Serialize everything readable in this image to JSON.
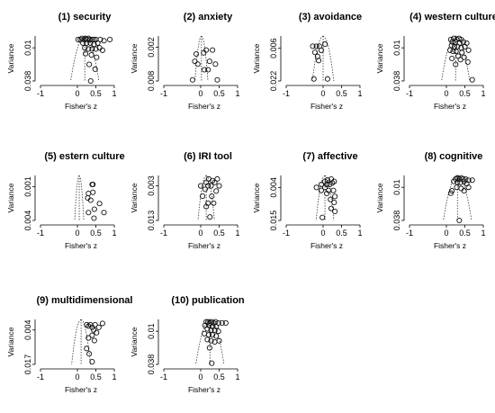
{
  "axis_labels": {
    "x": "Fisher's z",
    "y": "Variance"
  },
  "chart_data": [
    {
      "type": "scatter",
      "title": "(1) security",
      "xlabel": "Fisher's z",
      "ylabel": "Variance",
      "xlim": [
        -1,
        1
      ],
      "ylim": [
        0.038,
        0
      ],
      "x_ticks": [
        -1,
        0,
        0.5,
        1
      ],
      "x_tick_labels": [
        "-1",
        "0",
        "0.5",
        "1"
      ],
      "y_ticks": [
        0.01,
        0.038
      ],
      "y_tick_labels": [
        "0.01",
        "0.038"
      ],
      "funnel_center": 0.2,
      "points": [
        {
          "x": 0.02,
          "y": 0.003
        },
        {
          "x": 0.08,
          "y": 0.003
        },
        {
          "x": 0.12,
          "y": 0.002
        },
        {
          "x": 0.18,
          "y": 0.003
        },
        {
          "x": 0.22,
          "y": 0.002
        },
        {
          "x": 0.26,
          "y": 0.003
        },
        {
          "x": 0.3,
          "y": 0.002
        },
        {
          "x": 0.34,
          "y": 0.003
        },
        {
          "x": 0.4,
          "y": 0.003
        },
        {
          "x": 0.45,
          "y": 0.003
        },
        {
          "x": 0.5,
          "y": 0.003
        },
        {
          "x": 0.62,
          "y": 0.003
        },
        {
          "x": 0.72,
          "y": 0.004
        },
        {
          "x": 0.88,
          "y": 0.003
        },
        {
          "x": 0.15,
          "y": 0.006
        },
        {
          "x": 0.25,
          "y": 0.006
        },
        {
          "x": 0.35,
          "y": 0.006
        },
        {
          "x": 0.45,
          "y": 0.007
        },
        {
          "x": 0.55,
          "y": 0.006
        },
        {
          "x": 0.2,
          "y": 0.01
        },
        {
          "x": 0.3,
          "y": 0.011
        },
        {
          "x": 0.4,
          "y": 0.011
        },
        {
          "x": 0.5,
          "y": 0.011
        },
        {
          "x": 0.6,
          "y": 0.01
        },
        {
          "x": 0.68,
          "y": 0.012
        },
        {
          "x": 0.22,
          "y": 0.015
        },
        {
          "x": 0.38,
          "y": 0.016
        },
        {
          "x": 0.52,
          "y": 0.018
        },
        {
          "x": 0.32,
          "y": 0.024
        },
        {
          "x": 0.48,
          "y": 0.028
        },
        {
          "x": 0.36,
          "y": 0.038
        }
      ]
    },
    {
      "type": "scatter",
      "title": "(2) anxiety",
      "xlabel": "Fisher's z",
      "ylabel": "Variance",
      "xlim": [
        -1,
        1
      ],
      "ylim": [
        0.008,
        0
      ],
      "x_ticks": [
        -1,
        0,
        0.5,
        1
      ],
      "x_tick_labels": [
        "-1",
        "0",
        "0.5",
        "1"
      ],
      "y_ticks": [
        0.002,
        0.008
      ],
      "y_tick_labels": [
        "0.002",
        "0.008"
      ],
      "funnel_center": 0.02,
      "points": [
        {
          "x": 0.15,
          "y": 0.0025
        },
        {
          "x": 0.32,
          "y": 0.0025
        },
        {
          "x": -0.12,
          "y": 0.0032
        },
        {
          "x": 0.08,
          "y": 0.003
        },
        {
          "x": -0.16,
          "y": 0.0045
        },
        {
          "x": 0.24,
          "y": 0.0045
        },
        {
          "x": -0.08,
          "y": 0.005
        },
        {
          "x": 0.4,
          "y": 0.005
        },
        {
          "x": 0.2,
          "y": 0.006
        },
        {
          "x": 0.1,
          "y": 0.006
        },
        {
          "x": -0.22,
          "y": 0.0078
        },
        {
          "x": 0.45,
          "y": 0.0078
        }
      ]
    },
    {
      "type": "scatter",
      "title": "(3) avoidance",
      "xlabel": "Fisher's z",
      "ylabel": "Variance",
      "xlim": [
        -1,
        1
      ],
      "ylim": [
        0.022,
        0
      ],
      "x_ticks": [
        -1,
        0,
        0.5,
        1
      ],
      "x_tick_labels": [
        "-1",
        "0",
        "0.5",
        "1"
      ],
      "y_ticks": [
        0.006,
        0.022
      ],
      "y_tick_labels": [
        "0.006",
        "0.022"
      ],
      "funnel_center": 0.0,
      "points": [
        {
          "x": -0.28,
          "y": 0.005
        },
        {
          "x": -0.18,
          "y": 0.005
        },
        {
          "x": -0.1,
          "y": 0.005
        },
        {
          "x": 0.05,
          "y": 0.004
        },
        {
          "x": -0.22,
          "y": 0.008
        },
        {
          "x": -0.05,
          "y": 0.007
        },
        {
          "x": -0.15,
          "y": 0.01
        },
        {
          "x": -0.12,
          "y": 0.012
        },
        {
          "x": -0.25,
          "y": 0.021
        },
        {
          "x": 0.12,
          "y": 0.021
        }
      ]
    },
    {
      "type": "scatter",
      "title": "(4) western culture",
      "xlabel": "Fisher's z",
      "ylabel": "Variance",
      "xlim": [
        -1,
        1
      ],
      "ylim": [
        0.038,
        0
      ],
      "x_ticks": [
        -1,
        0,
        0.5,
        1
      ],
      "x_tick_labels": [
        "-1",
        "0",
        "0.5",
        "1"
      ],
      "y_ticks": [
        0.01,
        0.038
      ],
      "y_tick_labels": [
        "0.01",
        "0.038"
      ],
      "funnel_center": 0.25,
      "points": [
        {
          "x": 0.12,
          "y": 0.003
        },
        {
          "x": 0.2,
          "y": 0.002
        },
        {
          "x": 0.28,
          "y": 0.003
        },
        {
          "x": 0.34,
          "y": 0.002
        },
        {
          "x": 0.4,
          "y": 0.003
        },
        {
          "x": 0.16,
          "y": 0.005
        },
        {
          "x": 0.24,
          "y": 0.005
        },
        {
          "x": 0.36,
          "y": 0.006
        },
        {
          "x": 0.46,
          "y": 0.005
        },
        {
          "x": 0.55,
          "y": 0.006
        },
        {
          "x": 0.14,
          "y": 0.008
        },
        {
          "x": 0.22,
          "y": 0.009
        },
        {
          "x": 0.3,
          "y": 0.009
        },
        {
          "x": 0.4,
          "y": 0.01
        },
        {
          "x": 0.5,
          "y": 0.009
        },
        {
          "x": 0.1,
          "y": 0.012
        },
        {
          "x": 0.18,
          "y": 0.013
        },
        {
          "x": 0.26,
          "y": 0.013
        },
        {
          "x": 0.42,
          "y": 0.014
        },
        {
          "x": 0.6,
          "y": 0.012
        },
        {
          "x": 0.32,
          "y": 0.017
        },
        {
          "x": 0.48,
          "y": 0.018
        },
        {
          "x": 0.15,
          "y": 0.019
        },
        {
          "x": 0.38,
          "y": 0.02
        },
        {
          "x": 0.25,
          "y": 0.024
        },
        {
          "x": 0.58,
          "y": 0.022
        },
        {
          "x": 0.7,
          "y": 0.037
        }
      ]
    },
    {
      "type": "scatter",
      "title": "(5) estern culture",
      "xlabel": "Fisher's z",
      "ylabel": "Variance",
      "xlim": [
        -1,
        1
      ],
      "ylim": [
        0.004,
        0
      ],
      "x_ticks": [
        -1,
        0,
        0.5,
        1
      ],
      "x_tick_labels": [
        "-1",
        "0",
        "0.5",
        "1"
      ],
      "y_ticks": [
        0.001,
        0.004
      ],
      "y_tick_labels": [
        "0.001",
        "0.004"
      ],
      "funnel_center": 0.05,
      "points": [
        {
          "x": 0.4,
          "y": 0.0008
        },
        {
          "x": 0.42,
          "y": 0.0008
        },
        {
          "x": 0.3,
          "y": 0.0016
        },
        {
          "x": 0.42,
          "y": 0.0015
        },
        {
          "x": 0.28,
          "y": 0.002
        },
        {
          "x": 0.36,
          "y": 0.0022
        },
        {
          "x": 0.6,
          "y": 0.0025
        },
        {
          "x": 0.46,
          "y": 0.003
        },
        {
          "x": 0.3,
          "y": 0.0033
        },
        {
          "x": 0.72,
          "y": 0.0033
        },
        {
          "x": 0.45,
          "y": 0.0038
        }
      ]
    },
    {
      "type": "scatter",
      "title": "(6) IRI tool",
      "xlabel": "Fisher's z",
      "ylabel": "Variance",
      "xlim": [
        -1,
        1
      ],
      "ylim": [
        0.013,
        0
      ],
      "x_ticks": [
        -1,
        0,
        0.5,
        1
      ],
      "x_tick_labels": [
        "-1",
        "0",
        "0.5",
        "1"
      ],
      "y_ticks": [
        0.003,
        0.013
      ],
      "y_tick_labels": [
        "0.003",
        "0.013"
      ],
      "funnel_center": 0.15,
      "points": [
        {
          "x": 0.22,
          "y": 0.001
        },
        {
          "x": 0.32,
          "y": 0.0015
        },
        {
          "x": 0.45,
          "y": 0.001
        },
        {
          "x": 0.15,
          "y": 0.002
        },
        {
          "x": 0.38,
          "y": 0.002
        },
        {
          "x": 0.2,
          "y": 0.003
        },
        {
          "x": 0.28,
          "y": 0.003
        },
        {
          "x": 0.5,
          "y": 0.003
        },
        {
          "x": 0.0,
          "y": 0.003
        },
        {
          "x": 0.12,
          "y": 0.004
        },
        {
          "x": 0.42,
          "y": 0.0045
        },
        {
          "x": 0.3,
          "y": 0.006
        },
        {
          "x": 0.05,
          "y": 0.006
        },
        {
          "x": 0.2,
          "y": 0.008
        },
        {
          "x": 0.35,
          "y": 0.008
        },
        {
          "x": 0.15,
          "y": 0.009
        },
        {
          "x": 0.25,
          "y": 0.012
        }
      ]
    },
    {
      "type": "scatter",
      "title": "(7) affective",
      "xlabel": "Fisher's z",
      "ylabel": "Variance",
      "xlim": [
        -1,
        1
      ],
      "ylim": [
        0.015,
        0
      ],
      "x_ticks": [
        -1,
        0,
        0.5,
        1
      ],
      "x_tick_labels": [
        "-1",
        "0",
        "0.5",
        "1"
      ],
      "y_ticks": [
        0.004,
        0.015
      ],
      "y_tick_labels": [
        "0.004",
        "0.015"
      ],
      "funnel_center": 0.05,
      "points": [
        {
          "x": 0.05,
          "y": 0.002
        },
        {
          "x": 0.12,
          "y": 0.0015
        },
        {
          "x": 0.22,
          "y": 0.0012
        },
        {
          "x": 0.3,
          "y": 0.002
        },
        {
          "x": -0.05,
          "y": 0.003
        },
        {
          "x": 0.1,
          "y": 0.003
        },
        {
          "x": 0.18,
          "y": 0.003
        },
        {
          "x": 0.25,
          "y": 0.0025
        },
        {
          "x": -0.18,
          "y": 0.004
        },
        {
          "x": -0.05,
          "y": 0.005
        },
        {
          "x": 0.05,
          "y": 0.004
        },
        {
          "x": 0.15,
          "y": 0.005
        },
        {
          "x": 0.28,
          "y": 0.005
        },
        {
          "x": 0.1,
          "y": 0.006
        },
        {
          "x": 0.32,
          "y": 0.007
        },
        {
          "x": 0.2,
          "y": 0.008
        },
        {
          "x": 0.3,
          "y": 0.009
        },
        {
          "x": 0.22,
          "y": 0.011
        },
        {
          "x": 0.32,
          "y": 0.012
        },
        {
          "x": -0.02,
          "y": 0.014
        }
      ]
    },
    {
      "type": "scatter",
      "title": "(8) cognitive",
      "xlabel": "Fisher's z",
      "ylabel": "Variance",
      "xlim": [
        -1,
        1
      ],
      "ylim": [
        0.038,
        0
      ],
      "x_ticks": [
        -1,
        0,
        0.5,
        1
      ],
      "x_tick_labels": [
        "-1",
        "0",
        "0.5",
        "1"
      ],
      "y_ticks": [
        0.01,
        0.038
      ],
      "y_tick_labels": [
        "0.01",
        "0.038"
      ],
      "funnel_center": 0.3,
      "points": [
        {
          "x": 0.25,
          "y": 0.003
        },
        {
          "x": 0.3,
          "y": 0.002
        },
        {
          "x": 0.35,
          "y": 0.003
        },
        {
          "x": 0.4,
          "y": 0.002
        },
        {
          "x": 0.45,
          "y": 0.003
        },
        {
          "x": 0.52,
          "y": 0.003
        },
        {
          "x": 0.6,
          "y": 0.004
        },
        {
          "x": 0.7,
          "y": 0.004
        },
        {
          "x": 0.2,
          "y": 0.005
        },
        {
          "x": 0.3,
          "y": 0.006
        },
        {
          "x": 0.38,
          "y": 0.006
        },
        {
          "x": 0.48,
          "y": 0.005
        },
        {
          "x": 0.55,
          "y": 0.007
        },
        {
          "x": 0.28,
          "y": 0.01
        },
        {
          "x": 0.4,
          "y": 0.011
        },
        {
          "x": 0.6,
          "y": 0.01
        },
        {
          "x": 0.15,
          "y": 0.013
        },
        {
          "x": 0.48,
          "y": 0.013
        },
        {
          "x": 0.12,
          "y": 0.015
        },
        {
          "x": 0.35,
          "y": 0.038
        }
      ]
    },
    {
      "type": "scatter",
      "title": "(9) multidimensional",
      "xlabel": "Fisher's z",
      "ylabel": "Variance",
      "xlim": [
        -1,
        1
      ],
      "ylim": [
        0.017,
        0
      ],
      "x_ticks": [
        -1,
        0,
        0.5,
        1
      ],
      "x_tick_labels": [
        "-1",
        "0",
        "0.5",
        "1"
      ],
      "y_ticks": [
        0.004,
        0.017
      ],
      "y_tick_labels": [
        "0.004",
        "0.017"
      ],
      "funnel_center": 0.1,
      "points": [
        {
          "x": 0.25,
          "y": 0.002
        },
        {
          "x": 0.3,
          "y": 0.0025
        },
        {
          "x": 0.35,
          "y": 0.002
        },
        {
          "x": 0.4,
          "y": 0.003
        },
        {
          "x": 0.48,
          "y": 0.002
        },
        {
          "x": 0.58,
          "y": 0.003
        },
        {
          "x": 0.68,
          "y": 0.0015
        },
        {
          "x": 0.44,
          "y": 0.004
        },
        {
          "x": 0.52,
          "y": 0.005
        },
        {
          "x": 0.4,
          "y": 0.006
        },
        {
          "x": 0.3,
          "y": 0.007
        },
        {
          "x": 0.46,
          "y": 0.008
        },
        {
          "x": 0.25,
          "y": 0.011
        },
        {
          "x": 0.32,
          "y": 0.013
        },
        {
          "x": 0.4,
          "y": 0.016
        }
      ]
    },
    {
      "type": "scatter",
      "title": "(10) publication",
      "xlabel": "Fisher's z",
      "ylabel": "Variance",
      "xlim": [
        -1,
        1
      ],
      "ylim": [
        0.038,
        0
      ],
      "x_ticks": [
        -1,
        0,
        0.5,
        1
      ],
      "x_tick_labels": [
        "-1",
        "0",
        "0.5",
        "1"
      ],
      "y_ticks": [
        0.01,
        0.038
      ],
      "y_tick_labels": [
        "0.01",
        "0.038"
      ],
      "funnel_center": 0.25,
      "points": [
        {
          "x": 0.15,
          "y": 0.002
        },
        {
          "x": 0.2,
          "y": 0.002
        },
        {
          "x": 0.25,
          "y": 0.003
        },
        {
          "x": 0.3,
          "y": 0.002
        },
        {
          "x": 0.35,
          "y": 0.003
        },
        {
          "x": 0.4,
          "y": 0.002
        },
        {
          "x": 0.48,
          "y": 0.003
        },
        {
          "x": 0.58,
          "y": 0.003
        },
        {
          "x": 0.68,
          "y": 0.003
        },
        {
          "x": 0.12,
          "y": 0.005
        },
        {
          "x": 0.22,
          "y": 0.005
        },
        {
          "x": 0.32,
          "y": 0.006
        },
        {
          "x": 0.42,
          "y": 0.006
        },
        {
          "x": 0.18,
          "y": 0.008
        },
        {
          "x": 0.28,
          "y": 0.009
        },
        {
          "x": 0.38,
          "y": 0.009
        },
        {
          "x": 0.48,
          "y": 0.01
        },
        {
          "x": 0.1,
          "y": 0.012
        },
        {
          "x": 0.22,
          "y": 0.013
        },
        {
          "x": 0.32,
          "y": 0.013
        },
        {
          "x": 0.42,
          "y": 0.014
        },
        {
          "x": 0.18,
          "y": 0.017
        },
        {
          "x": 0.28,
          "y": 0.018
        },
        {
          "x": 0.38,
          "y": 0.019
        },
        {
          "x": 0.5,
          "y": 0.018
        },
        {
          "x": 0.24,
          "y": 0.024
        },
        {
          "x": 0.3,
          "y": 0.037
        }
      ]
    }
  ]
}
